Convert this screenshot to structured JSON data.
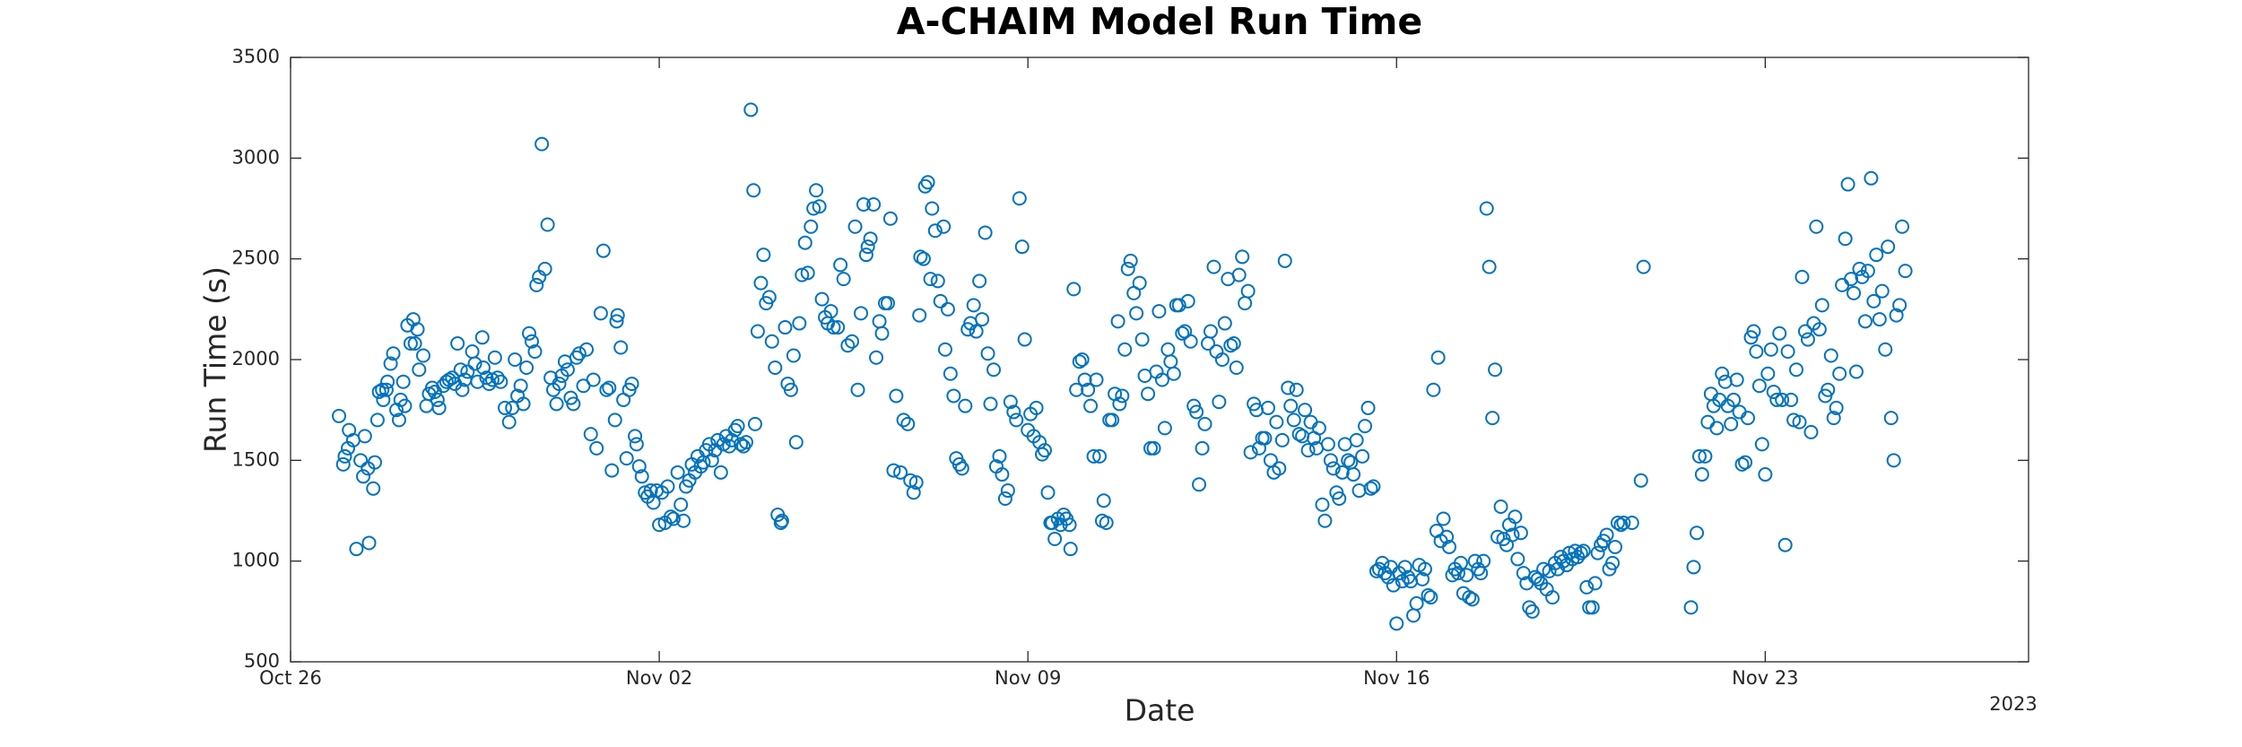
{
  "chart_data": {
    "type": "scatter",
    "title": "A-CHAIM Model Run Time",
    "xlabel": "Date",
    "ylabel": "Run Time (s)",
    "annotation": "2023",
    "color": "#0072BD",
    "grid": false,
    "xlim": [
      0,
      33
    ],
    "xticks": [
      {
        "value": 0,
        "label": "Oct 26"
      },
      {
        "value": 7,
        "label": "Nov 02"
      },
      {
        "value": 14,
        "label": "Nov 09"
      },
      {
        "value": 21,
        "label": "Nov 16"
      },
      {
        "value": 28,
        "label": "Nov 23"
      }
    ],
    "ylim": [
      500,
      3500
    ],
    "yticks": [
      500,
      1000,
      1500,
      2000,
      2500,
      3000,
      3500
    ],
    "x": [
      0.92,
      1.0,
      1.03,
      1.09,
      1.11,
      1.19,
      1.25,
      1.33,
      1.38,
      1.41,
      1.47,
      1.49,
      1.57,
      1.6,
      1.65,
      1.68,
      1.74,
      1.76,
      1.82,
      1.84,
      1.9,
      1.95,
      2.01,
      2.06,
      2.09,
      2.14,
      2.17,
      2.22,
      2.28,
      2.33,
      2.36,
      2.41,
      2.44,
      2.52,
      2.58,
      2.63,
      2.69,
      2.74,
      2.79,
      2.82,
      2.9,
      2.96,
      3.01,
      3.07,
      3.12,
      3.17,
      3.23,
      3.26,
      3.31,
      3.36,
      3.45,
      3.5,
      3.55,
      3.64,
      3.66,
      3.72,
      3.77,
      3.83,
      3.88,
      3.93,
      3.99,
      4.07,
      4.15,
      4.21,
      4.26,
      4.31,
      4.37,
      4.42,
      4.48,
      4.53,
      4.58,
      4.64,
      4.67,
      4.72,
      4.77,
      4.83,
      4.88,
      4.94,
      4.99,
      5.05,
      5.1,
      5.15,
      5.21,
      5.26,
      5.32,
      5.37,
      5.43,
      5.48,
      5.56,
      5.62,
      5.7,
      5.75,
      5.81,
      5.89,
      5.94,
      6.0,
      6.05,
      6.1,
      6.16,
      6.19,
      6.21,
      6.27,
      6.32,
      6.38,
      6.43,
      6.48,
      6.54,
      6.57,
      6.62,
      6.67,
      6.73,
      6.78,
      6.84,
      6.89,
      6.95,
      7.0,
      7.05,
      7.11,
      7.16,
      7.22,
      7.27,
      7.35,
      7.41,
      7.46,
      7.51,
      7.57,
      7.62,
      7.68,
      7.73,
      7.79,
      7.84,
      7.89,
      7.95,
      8.0,
      8.06,
      8.11,
      8.17,
      8.22,
      8.27,
      8.33,
      8.38,
      8.44,
      8.49,
      8.55,
      8.6,
      8.65,
      8.74,
      8.79,
      8.82,
      8.87,
      8.93,
      8.98,
      9.03,
      9.09,
      9.14,
      9.2,
      9.25,
      9.31,
      9.33,
      9.39,
      9.44,
      9.5,
      9.55,
      9.6,
      9.66,
      9.71,
      9.77,
      9.82,
      9.88,
      9.93,
      9.98,
      10.04,
      10.09,
      10.15,
      10.2,
      10.26,
      10.31,
      10.39,
      10.44,
      10.5,
      10.58,
      10.66,
      10.72,
      10.77,
      10.83,
      10.88,
      10.93,
      10.96,
      11.01,
      11.07,
      11.12,
      11.18,
      11.23,
      11.29,
      11.34,
      11.39,
      11.45,
      11.5,
      11.58,
      11.64,
      11.72,
      11.77,
      11.83,
      11.88,
      11.94,
      11.96,
      12.02,
      12.05,
      12.1,
      12.15,
      12.18,
      12.24,
      12.29,
      12.34,
      12.4,
      12.43,
      12.48,
      12.53,
      12.59,
      12.64,
      12.7,
      12.75,
      12.81,
      12.86,
      12.91,
      12.97,
      13.02,
      13.08,
      13.13,
      13.19,
      13.24,
      13.29,
      13.35,
      13.4,
      13.46,
      13.51,
      13.57,
      13.62,
      13.67,
      13.73,
      13.78,
      13.84,
      13.89,
      13.94,
      14.0,
      14.05,
      14.11,
      14.16,
      14.22,
      14.27,
      14.32,
      14.38,
      14.43,
      14.46,
      14.51,
      14.57,
      14.62,
      14.68,
      14.73,
      14.79,
      14.81,
      14.87,
      14.92,
      14.98,
      15.03,
      15.08,
      15.14,
      15.19,
      15.25,
      15.3,
      15.36,
      15.41,
      15.44,
      15.49,
      15.55,
      15.6,
      15.65,
      15.71,
      15.74,
      15.79,
      15.84,
      15.9,
      15.95,
      16.01,
      16.06,
      16.12,
      16.17,
      16.22,
      16.28,
      16.33,
      16.39,
      16.44,
      16.49,
      16.55,
      16.6,
      16.66,
      16.71,
      16.77,
      16.82,
      16.87,
      16.93,
      16.98,
      17.04,
      17.09,
      17.15,
      17.2,
      17.25,
      17.31,
      17.36,
      17.42,
      17.47,
      17.53,
      17.58,
      17.63,
      17.69,
      17.74,
      17.8,
      17.85,
      17.91,
      17.96,
      18.01,
      18.07,
      18.12,
      18.18,
      18.23,
      18.29,
      18.34,
      18.39,
      18.45,
      18.5,
      18.56,
      18.61,
      18.67,
      18.72,
      18.77,
      18.83,
      18.88,
      18.94,
      18.99,
      19.05,
      19.1,
      19.15,
      19.21,
      19.26,
      19.32,
      19.37,
      19.43,
      19.48,
      19.53,
      19.59,
      19.64,
      19.7,
      19.75,
      19.8,
      19.86,
      19.91,
      19.97,
      20.02,
      20.08,
      20.13,
      20.18,
      20.24,
      20.29,
      20.35,
      20.4,
      20.46,
      20.51,
      20.56,
      20.62,
      20.67,
      20.73,
      20.78,
      20.84,
      20.89,
      20.94,
      21.0,
      21.05,
      21.11,
      21.16,
      21.22,
      21.27,
      21.32,
      21.38,
      21.43,
      21.49,
      21.54,
      21.6,
      21.65,
      21.7,
      21.76,
      21.79,
      21.84,
      21.89,
      21.95,
      22.0,
      22.06,
      22.11,
      22.17,
      22.22,
      22.27,
      22.33,
      22.38,
      22.44,
      22.49,
      22.55,
      22.6,
      22.65,
      22.71,
      22.76,
      22.82,
      22.87,
      22.92,
      22.98,
      23.03,
      23.09,
      23.14,
      23.2,
      23.25,
      23.3,
      23.36,
      23.41,
      23.47,
      23.52,
      23.58,
      23.63,
      23.68,
      23.74,
      23.79,
      23.85,
      23.9,
      23.96,
      24.01,
      24.06,
      24.12,
      24.17,
      24.23,
      24.28,
      24.34,
      24.39,
      24.44,
      24.5,
      24.55,
      24.61,
      24.66,
      24.72,
      24.77,
      24.82,
      24.88,
      24.93,
      24.99,
      25.04,
      25.1,
      25.15,
      25.2,
      25.26,
      25.31,
      25.47,
      25.64,
      25.69,
      26.59,
      26.64,
      26.7,
      26.75,
      26.8,
      26.86,
      26.91,
      26.97,
      27.02,
      27.08,
      27.13,
      27.18,
      27.24,
      27.29,
      27.35,
      27.4,
      27.46,
      27.51,
      27.56,
      27.62,
      27.67,
      27.73,
      27.78,
      27.83,
      27.89,
      27.94,
      28.0,
      28.05,
      28.11,
      28.16,
      28.22,
      28.27,
      28.32,
      28.38,
      28.43,
      28.49,
      28.54,
      28.59,
      28.65,
      28.7,
      28.76,
      28.81,
      28.87,
      28.92,
      28.97,
      29.03,
      29.08,
      29.14,
      29.19,
      29.25,
      29.3,
      29.35,
      29.41,
      29.46,
      29.52,
      29.57,
      29.63,
      29.68,
      29.73,
      29.79,
      29.84,
      29.9,
      29.95,
      30.01,
      30.06,
      30.11,
      30.17,
      30.22,
      30.28,
      30.33,
      30.39,
      30.44,
      30.49,
      30.55,
      30.6,
      30.66
    ],
    "values": [
      1720,
      1480,
      1520,
      1560,
      1650,
      1600,
      1060,
      1500,
      1420,
      1620,
      1460,
      1090,
      1360,
      1490,
      1700,
      1840,
      1850,
      1800,
      1850,
      1890,
      1980,
      2030,
      1750,
      1700,
      1800,
      1890,
      1770,
      2170,
      2080,
      2200,
      2080,
      2150,
      1950,
      2020,
      1770,
      1830,
      1860,
      1840,
      1800,
      1760,
      1870,
      1890,
      1900,
      1910,
      1880,
      2080,
      1950,
      1850,
      1900,
      1940,
      2040,
      1980,
      1890,
      2110,
      1960,
      1910,
      1880,
      1900,
      2010,
      1910,
      1890,
      1760,
      1690,
      1760,
      2000,
      1820,
      1870,
      1780,
      1960,
      2130,
      2090,
      2040,
      2370,
      2410,
      3070,
      2450,
      2670,
      1910,
      1850,
      1780,
      1880,
      1920,
      1990,
      1950,
      1810,
      1780,
      2010,
      2030,
      1870,
      2050,
      1630,
      1900,
      1560,
      2230,
      2540,
      1850,
      1860,
      1450,
      1700,
      2190,
      2220,
      2060,
      1800,
      1510,
      1850,
      1880,
      1620,
      1580,
      1470,
      1420,
      1340,
      1320,
      1350,
      1290,
      1350,
      1180,
      1340,
      1190,
      1370,
      1220,
      1210,
      1440,
      1280,
      1200,
      1370,
      1400,
      1480,
      1440,
      1520,
      1470,
      1490,
      1550,
      1580,
      1500,
      1550,
      1600,
      1440,
      1580,
      1620,
      1570,
      1600,
      1650,
      1670,
      1580,
      1570,
      1590,
      3240,
      2840,
      1680,
      2140,
      2380,
      2520,
      2280,
      2310,
      2090,
      1960,
      1230,
      1190,
      1200,
      2160,
      1880,
      1850,
      2020,
      1590,
      2180,
      2420,
      2580,
      2430,
      2660,
      2750,
      2840,
      2760,
      2300,
      2210,
      2180,
      2240,
      2160,
      2160,
      2470,
      2400,
      2070,
      2090,
      2660,
      1850,
      2230,
      2770,
      2520,
      2560,
      2600,
      2770,
      2010,
      2190,
      2130,
      2280,
      2280,
      2700,
      1450,
      1820,
      1440,
      1700,
      1680,
      1400,
      1340,
      1390,
      2220,
      2510,
      2500,
      2860,
      2880,
      2400,
      2750,
      2640,
      2390,
      2290,
      2660,
      2050,
      2250,
      1930,
      1820,
      1510,
      1480,
      1460,
      1770,
      2150,
      2180,
      2270,
      2140,
      2390,
      2200,
      2630,
      2030,
      1780,
      1950,
      1470,
      1520,
      1430,
      1310,
      1350,
      1790,
      1740,
      1700,
      2800,
      2560,
      2100,
      1650,
      1730,
      1620,
      1760,
      1590,
      1530,
      1550,
      1340,
      1190,
      1190,
      1110,
      1210,
      1180,
      1230,
      1210,
      1180,
      1060,
      2350,
      1850,
      1990,
      2000,
      1900,
      1850,
      1770,
      1520,
      1900,
      1520,
      1200,
      1300,
      1190,
      1700,
      1700,
      1830,
      2190,
      1780,
      1820,
      2050,
      2450,
      2490,
      2330,
      2230,
      2380,
      2100,
      1920,
      1830,
      1560,
      1560,
      1940,
      2240,
      1900,
      1660,
      2050,
      1990,
      1930,
      2270,
      2270,
      2130,
      2140,
      2290,
      2090,
      1770,
      1740,
      1380,
      1560,
      1680,
      2080,
      2140,
      2460,
      2040,
      1790,
      2000,
      2180,
      2400,
      2070,
      2080,
      1960,
      2420,
      2510,
      2280,
      2340,
      1540,
      1780,
      1750,
      1560,
      1610,
      1610,
      1760,
      1500,
      1440,
      1690,
      1460,
      1600,
      2490,
      1860,
      1770,
      1700,
      1850,
      1630,
      1620,
      1750,
      1550,
      1690,
      1610,
      1560,
      1660,
      1280,
      1200,
      1580,
      1500,
      1460,
      1340,
      1310,
      1440,
      1580,
      1500,
      1490,
      1430,
      1600,
      1350,
      1520,
      1670,
      1760,
      1360,
      1370,
      950,
      960,
      990,
      940,
      920,
      970,
      880,
      690,
      940,
      900,
      970,
      920,
      900,
      730,
      790,
      980,
      910,
      960,
      830,
      820,
      1850,
      1150,
      2010,
      1100,
      1210,
      1120,
      1070,
      930,
      960,
      940,
      990,
      840,
      930,
      820,
      810,
      1000,
      960,
      940,
      1000,
      2750,
      2460,
      1710,
      1950,
      1120,
      1270,
      1110,
      1080,
      1180,
      1130,
      1220,
      1010,
      1140,
      940,
      890,
      770,
      750,
      920,
      910,
      890,
      960,
      860,
      950,
      820,
      990,
      960,
      1020,
      1000,
      980,
      1040,
      1010,
      1050,
      1020,
      1040,
      1050,
      870,
      770,
      770,
      890,
      1040,
      1080,
      1100,
      1130,
      960,
      990,
      1070,
      1190,
      1180,
      1190,
      1190,
      1400,
      2460,
      770,
      970,
      1140,
      1520,
      1430,
      1520,
      1690,
      1830,
      1770,
      1660,
      1800,
      1930,
      1890,
      1770,
      1680,
      1800,
      1900,
      1740,
      1480,
      1490,
      1710,
      2110,
      2140,
      2040,
      1870,
      1580,
      1430,
      1930,
      2050,
      1840,
      1800,
      2130,
      1800,
      1080,
      2040,
      1800,
      1700,
      1950,
      1690,
      2410,
      2140,
      2100,
      1640,
      2180,
      2660,
      2150,
      2270,
      1820,
      1850,
      2020,
      1710,
      1760,
      1930,
      2370,
      2600,
      2870,
      2400,
      2330,
      1940,
      2450,
      2410,
      2190,
      2440,
      2900,
      2290,
      2520,
      2200,
      2340,
      2050,
      2560,
      1710,
      1500,
      2220,
      2270,
      2660,
      2440
    ]
  }
}
